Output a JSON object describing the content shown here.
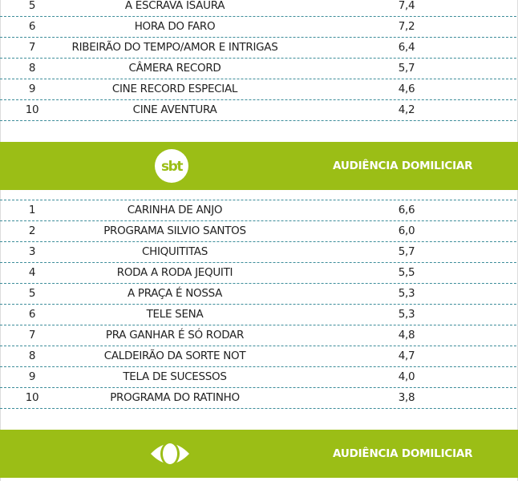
{
  "record": {
    "rows": [
      {
        "rank": "5",
        "program": "A ESCRAVA ISAURA",
        "audience": "7,4"
      },
      {
        "rank": "6",
        "program": "HORA DO FARO",
        "audience": "7,2"
      },
      {
        "rank": "7",
        "program": "RIBEIRÃO DO TEMPO/AMOR E INTRIGAS",
        "audience": "6,4"
      },
      {
        "rank": "8",
        "program": "CÂMERA RECORD",
        "audience": "5,7"
      },
      {
        "rank": "9",
        "program": "CINE RECORD ESPECIAL",
        "audience": "4,6"
      },
      {
        "rank": "10",
        "program": "CINE AVENTURA",
        "audience": "4,2"
      }
    ]
  },
  "sbt": {
    "logo_text": "sbt",
    "header_title": "AUDIÊNCIA DOMILICIAR",
    "rows": [
      {
        "rank": "1",
        "program": "CARINHA DE ANJO",
        "audience": "6,6"
      },
      {
        "rank": "2",
        "program": "PROGRAMA SILVIO SANTOS",
        "audience": "6,0"
      },
      {
        "rank": "3",
        "program": "CHIQUITITAS",
        "audience": "5,7"
      },
      {
        "rank": "4",
        "program": "RODA A RODA JEQUITI",
        "audience": "5,5"
      },
      {
        "rank": "5",
        "program": "A PRAÇA É NOSSA",
        "audience": "5,3"
      },
      {
        "rank": "6",
        "program": "TELE SENA",
        "audience": "5,3"
      },
      {
        "rank": "7",
        "program": "PRA GANHAR É SÓ RODAR",
        "audience": "4,8"
      },
      {
        "rank": "8",
        "program": "CALDEIRÃO DA SORTE NOT",
        "audience": "4,7"
      },
      {
        "rank": "9",
        "program": "TELA DE SUCESSOS",
        "audience": "4,0"
      },
      {
        "rank": "10",
        "program": "PROGRAMA DO RATINHO",
        "audience": "3,8"
      }
    ]
  },
  "band": {
    "header_title": "AUDIÊNCIA DOMILICIAR"
  },
  "colors": {
    "header_green": "#9bbe16",
    "divider": "#3d8d9a"
  }
}
